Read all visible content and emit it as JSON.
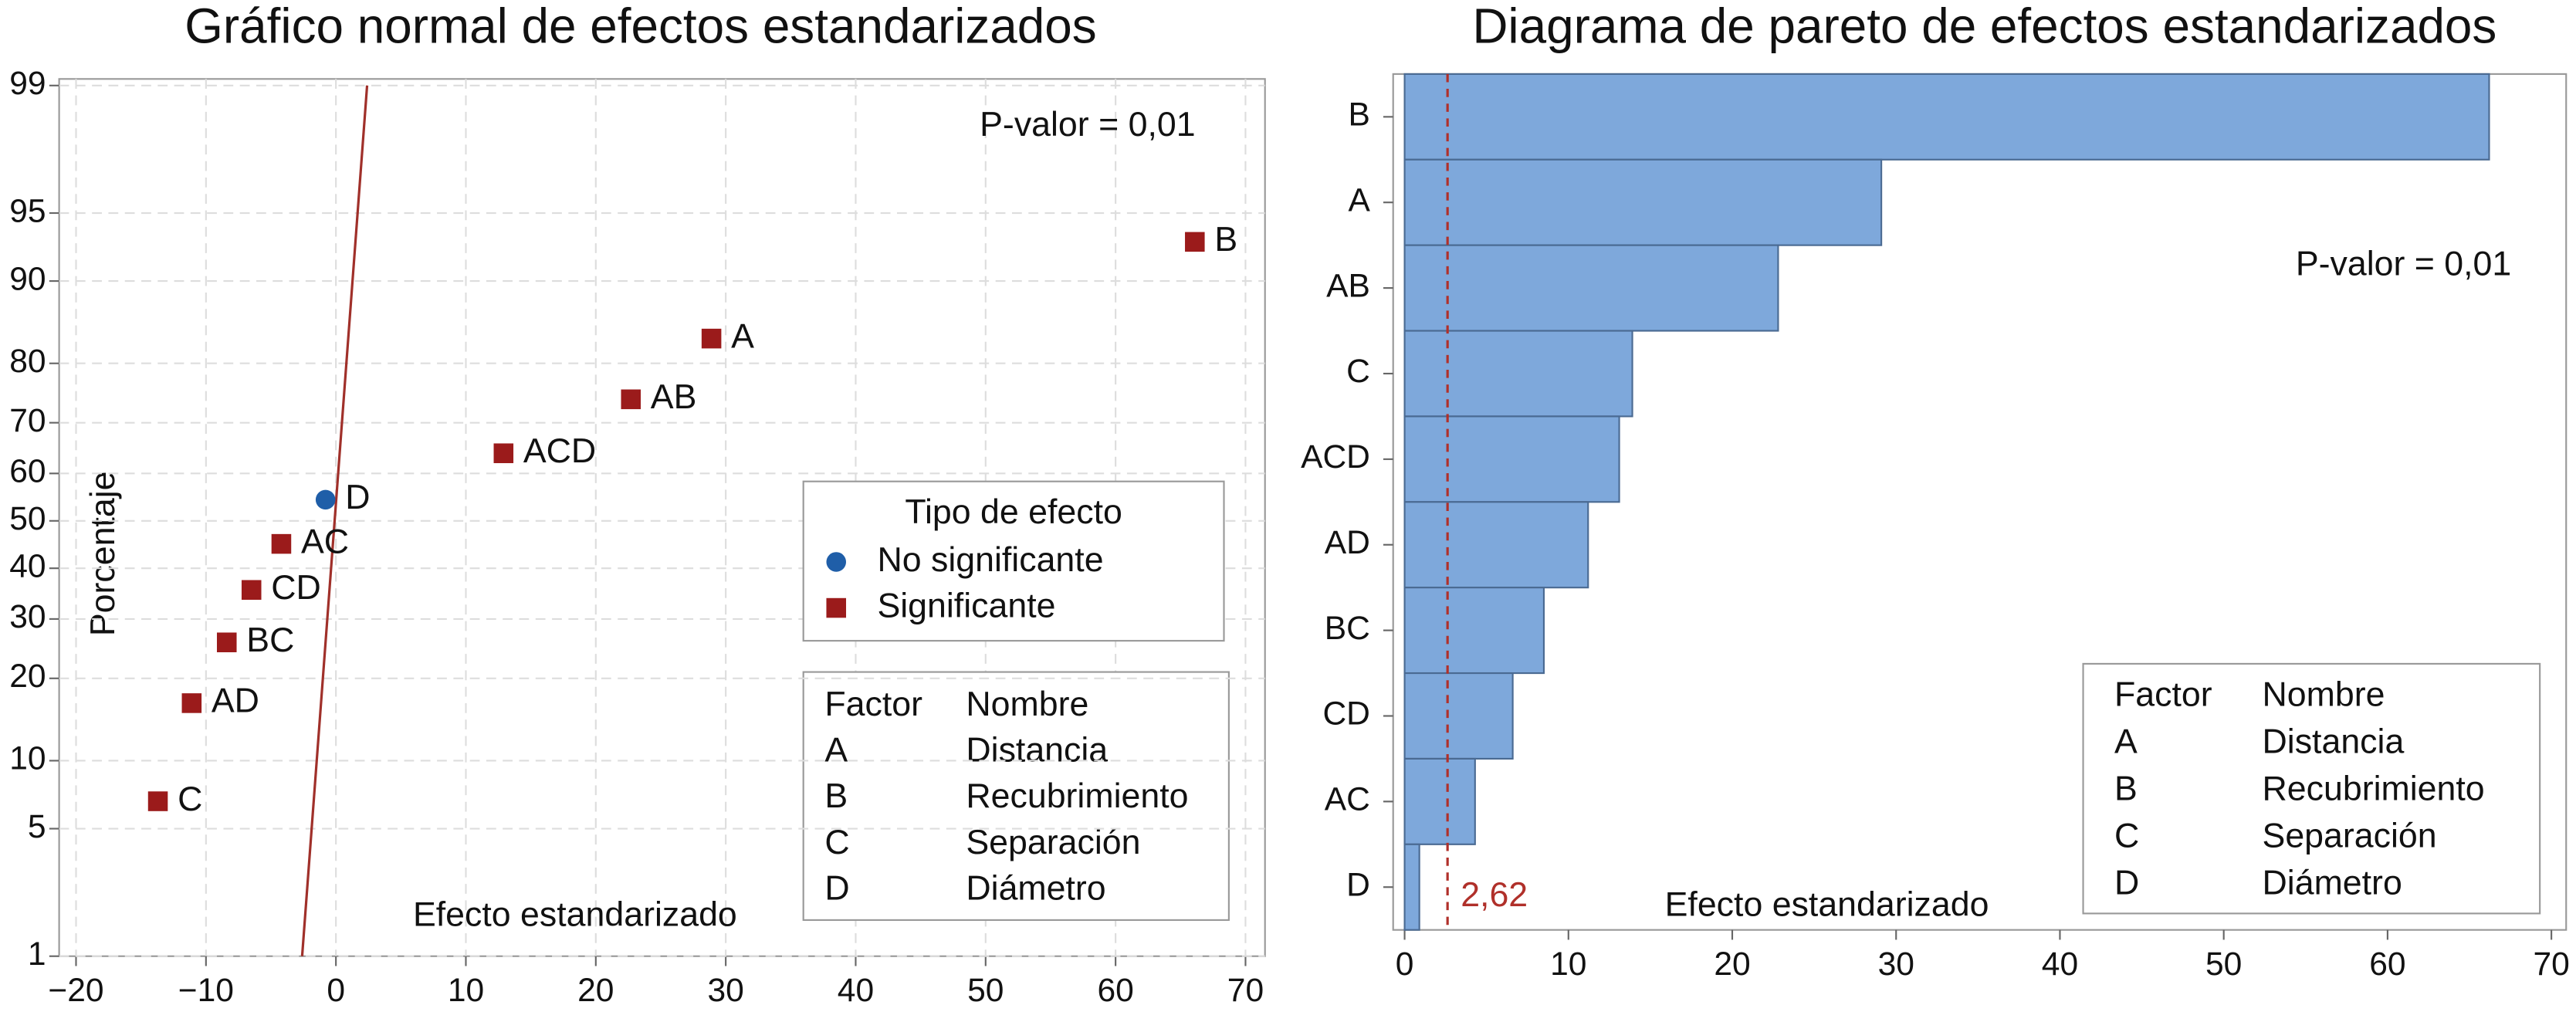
{
  "chart_data": [
    {
      "type": "scatter",
      "title": "Gráfico normal de efectos estandarizados",
      "xlabel": "Efecto estandarizado",
      "ylabel": "Porcentaje",
      "xlim": [
        -21.3,
        71.5
      ],
      "xticks": [
        {
          "value": -20,
          "label": "−20"
        },
        {
          "value": -10,
          "label": "−10"
        },
        0,
        10,
        20,
        30,
        40,
        50,
        60,
        70
      ],
      "ylim": [
        1,
        99
      ],
      "yticks": [
        1,
        5,
        10,
        20,
        30,
        40,
        50,
        60,
        70,
        80,
        90,
        95,
        99
      ],
      "yscale": "normal",
      "grid": true,
      "annotation": "P-valor = 0,01",
      "legend_title": "Tipo de efecto",
      "series": [
        {
          "name": "No significante",
          "color": "#1f5ea8",
          "marker": "circle",
          "x": [
            -0.8
          ],
          "values": [
            54.5
          ],
          "labels": [
            "D"
          ]
        },
        {
          "name": "Significante",
          "color": "#9b1b1b",
          "marker": "square",
          "x": [
            66.1,
            28.9,
            22.7,
            12.9,
            -4.2,
            -6.5,
            -8.4,
            -11.1,
            -13.7
          ],
          "values": [
            93.2,
            83.5,
            74.2,
            64.1,
            45.1,
            35.6,
            25.8,
            16.5,
            6.7
          ],
          "labels": [
            "B",
            "A",
            "AB",
            "ACD",
            "AC",
            "CD",
            "BC",
            "AD",
            "C"
          ]
        }
      ],
      "reference_line": {
        "color": "#a0302a",
        "x": [
          -2.6,
          2.4
        ],
        "y": [
          1,
          99
        ]
      },
      "factor_table": {
        "header": [
          "Factor",
          "Nombre"
        ],
        "rows": [
          [
            "A",
            "Distancia"
          ],
          [
            "B",
            "Recubrimiento"
          ],
          [
            "C",
            "Separación"
          ],
          [
            "D",
            "Diámetro"
          ]
        ]
      }
    },
    {
      "type": "barh",
      "title": "Diagrama de pareto de efectos estandarizados",
      "xlabel": "Efecto estandarizado",
      "categories": [
        "B",
        "A",
        "AB",
        "C",
        "ACD",
        "AD",
        "BC",
        "CD",
        "AC",
        "D"
      ],
      "values": [
        66.2,
        29.1,
        22.8,
        13.9,
        13.1,
        11.2,
        8.5,
        6.6,
        4.3,
        0.9
      ],
      "color": "#7ea8db",
      "xlim": [
        -0.7,
        70.9
      ],
      "xticks": [
        0,
        10,
        20,
        30,
        40,
        50,
        60,
        70
      ],
      "annotation": "P-valor = 0,01",
      "reference_line": {
        "value": 2.62,
        "label": "2,62",
        "color": "#b0302a"
      },
      "factor_table": {
        "header": [
          "Factor",
          "Nombre"
        ],
        "rows": [
          [
            "A",
            "Distancia"
          ],
          [
            "B",
            "Recubrimiento"
          ],
          [
            "C",
            "Separación"
          ],
          [
            "D",
            "Diámetro"
          ]
        ]
      }
    }
  ]
}
